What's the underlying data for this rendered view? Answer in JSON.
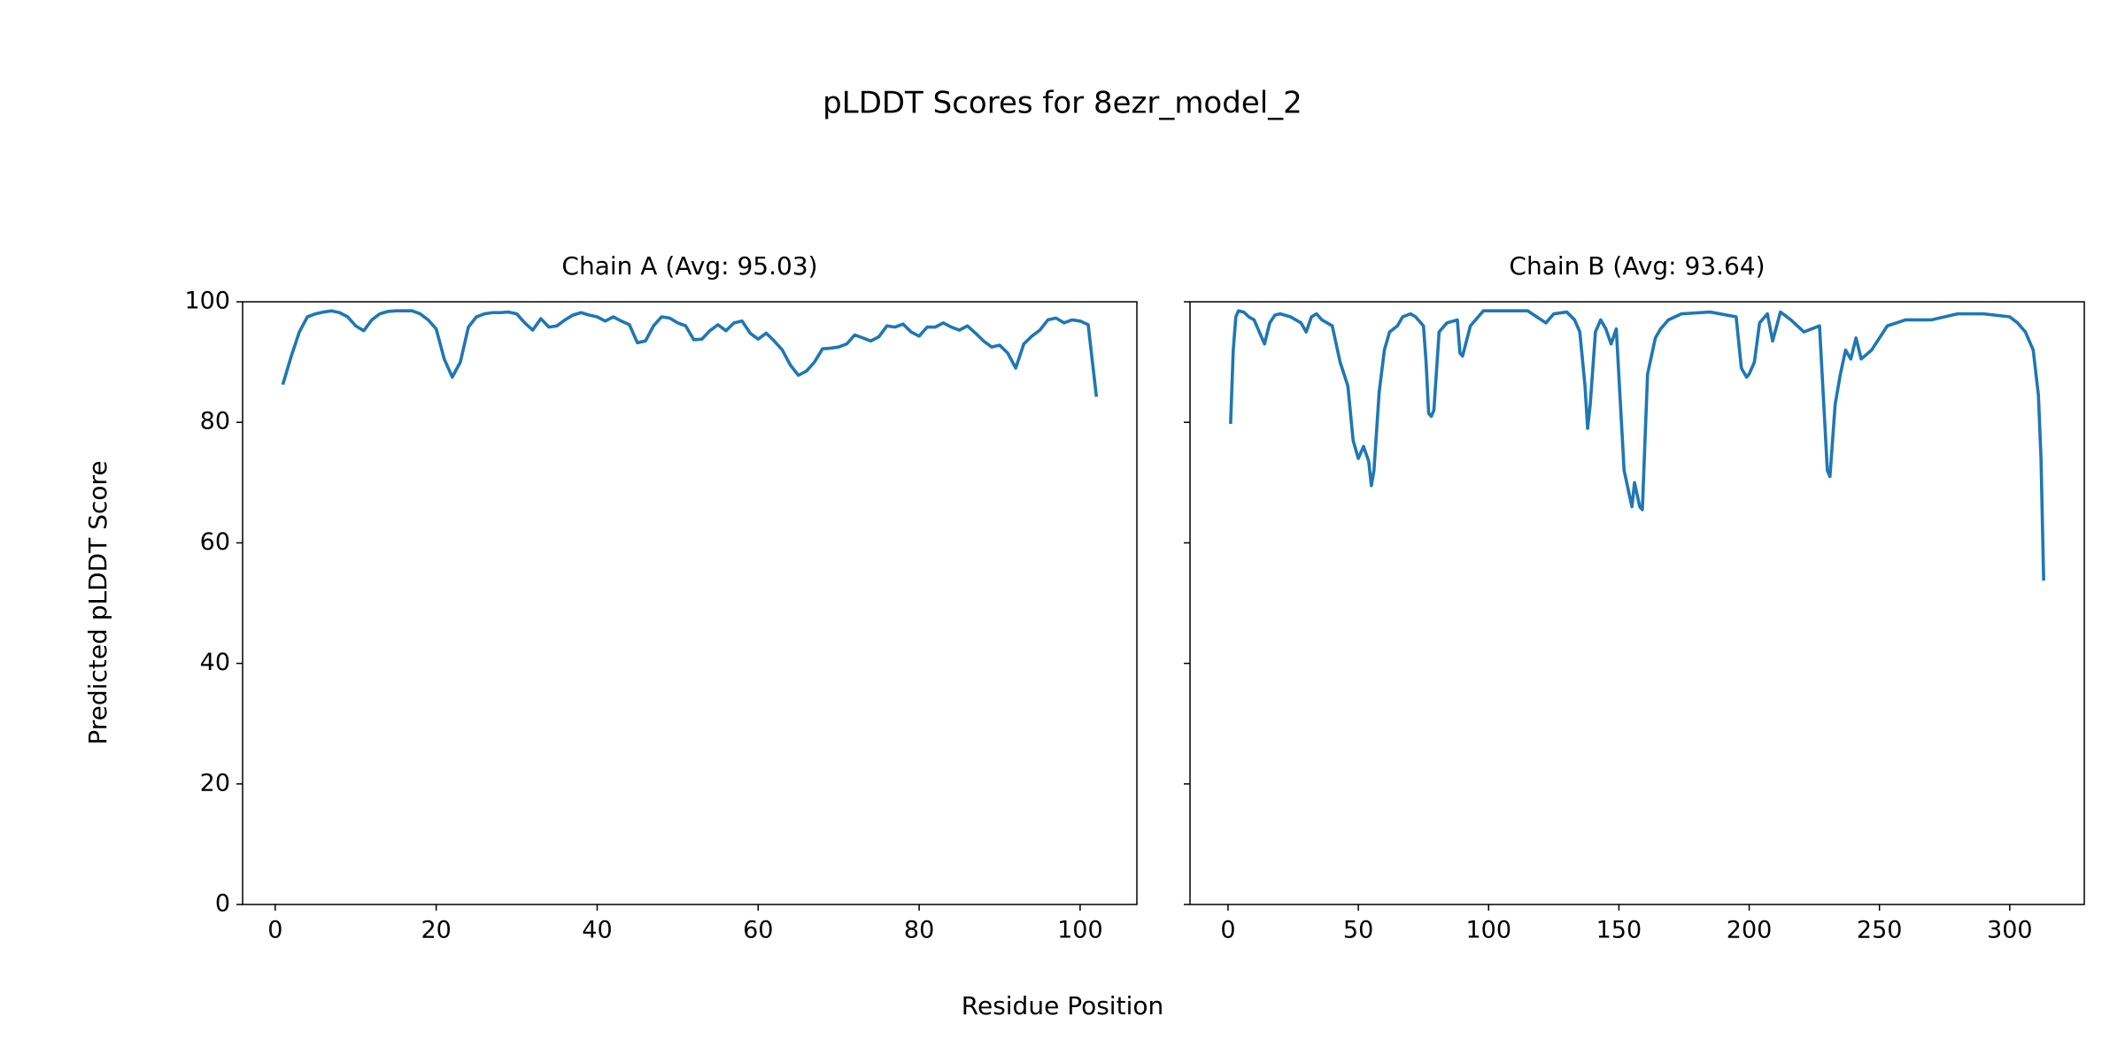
{
  "title": "pLDDT Scores for 8ezr_model_2",
  "xlabel": "Residue Position",
  "ylabel": "Predicted pLDDT Score",
  "chart_data": [
    {
      "type": "line",
      "title": "Chain A (Avg: 95.03)",
      "color": "#1f77b4",
      "x": [
        1,
        2,
        3,
        4,
        5,
        6,
        7,
        8,
        9,
        10,
        11,
        12,
        13,
        14,
        15,
        16,
        17,
        18,
        19,
        20,
        21,
        22,
        23,
        24,
        25,
        26,
        27,
        28,
        29,
        30,
        31,
        32,
        33,
        34,
        35,
        36,
        37,
        38,
        39,
        40,
        41,
        42,
        43,
        44,
        45,
        46,
        47,
        48,
        49,
        50,
        51,
        52,
        53,
        54,
        55,
        56,
        57,
        58,
        59,
        60,
        61,
        62,
        63,
        64,
        65,
        66,
        67,
        68,
        69,
        70,
        71,
        72,
        73,
        74,
        75,
        76,
        77,
        78,
        79,
        80,
        81,
        82,
        83,
        84,
        85,
        86,
        87,
        88,
        89,
        90,
        91,
        92,
        93,
        94,
        95,
        96,
        97,
        98,
        99,
        100,
        101,
        102
      ],
      "values": [
        86.5,
        91,
        95,
        97.5,
        98,
        98.3,
        98.5,
        98.2,
        97.5,
        96,
        95.2,
        97,
        98,
        98.4,
        98.5,
        98.5,
        98.5,
        98,
        97,
        95.5,
        90.5,
        87.5,
        90,
        95.8,
        97.5,
        98,
        98.2,
        98.2,
        98.3,
        98,
        96.5,
        95.3,
        97.2,
        95.8,
        96,
        97,
        97.8,
        98.2,
        97.8,
        97.5,
        96.8,
        97.5,
        96.8,
        96.2,
        93.2,
        93.5,
        96,
        97.5,
        97.3,
        96.5,
        96,
        93.7,
        93.8,
        95.2,
        96.2,
        95.2,
        96.5,
        96.8,
        94.8,
        93.8,
        94.8,
        93.5,
        92,
        89.5,
        87.8,
        88.5,
        90,
        92.2,
        92.3,
        92.5,
        93,
        94.5,
        94,
        93.5,
        94.2,
        96,
        95.8,
        96.3,
        95,
        94.3,
        95.8,
        95.8,
        96.5,
        95.8,
        95.3,
        96,
        94.8,
        93.5,
        92.5,
        92.8,
        91.5,
        89,
        93,
        94.3,
        95.3,
        97,
        97.3,
        96.5,
        97,
        96.8,
        96.2,
        84.5
      ],
      "xlim": [
        -4.05,
        107.05
      ],
      "ylim": [
        0,
        100
      ],
      "xticks": [
        0,
        20,
        40,
        60,
        80,
        100
      ],
      "yticks": [
        0,
        20,
        40,
        60,
        80,
        100
      ],
      "ytick_labels": true
    },
    {
      "type": "line",
      "title": "Chain B (Avg: 93.64)",
      "color": "#1f77b4",
      "x": [
        1,
        2,
        3,
        4,
        6,
        8,
        10,
        12,
        14,
        16,
        18,
        20,
        24,
        28,
        30,
        32,
        34,
        36,
        40,
        43,
        46,
        48,
        50,
        52,
        54,
        55,
        56,
        58,
        60,
        62,
        65,
        67,
        70,
        72,
        75,
        76,
        77,
        78,
        79,
        81,
        84,
        88,
        89,
        90,
        93,
        98,
        105,
        115,
        122,
        125,
        130,
        133,
        135,
        137,
        138,
        139,
        141,
        143,
        145,
        147,
        149,
        152,
        153,
        155,
        156,
        158,
        159,
        161,
        164,
        166,
        169,
        174,
        185,
        195,
        197,
        199,
        200,
        202,
        204,
        207,
        209,
        212,
        216,
        221,
        227,
        229,
        230,
        231,
        233,
        235,
        237,
        239,
        241,
        243,
        247,
        253,
        260,
        270,
        280,
        290,
        300,
        303,
        306,
        309,
        311,
        312,
        313
      ],
      "values": [
        80,
        92,
        97.5,
        98.5,
        98.3,
        97.5,
        97,
        95,
        93,
        96.5,
        97.8,
        98,
        97.5,
        96.5,
        95,
        97.5,
        98,
        97,
        96,
        90,
        86,
        77,
        74,
        76,
        73.5,
        69.5,
        72,
        85,
        92,
        95,
        96,
        97.5,
        98,
        97.5,
        96,
        90,
        81.5,
        81,
        82,
        95,
        96.5,
        97,
        91.5,
        91,
        96,
        98.5,
        98.5,
        98.5,
        96.5,
        98,
        98.3,
        97,
        95,
        86,
        79,
        83,
        95,
        97,
        95.5,
        93,
        95.5,
        72,
        70,
        66,
        70,
        66,
        65.5,
        88,
        94,
        95.5,
        97,
        98,
        98.3,
        97.5,
        89,
        87.5,
        88,
        90,
        96.5,
        98,
        93.5,
        98.3,
        97,
        95,
        96,
        80,
        72,
        71,
        83,
        88,
        92,
        90.5,
        94,
        90.5,
        92,
        96,
        97,
        97,
        98,
        98,
        97.5,
        96.5,
        95,
        92,
        84.5,
        74,
        54
      ],
      "xlim": [
        -14.6,
        328.6
      ],
      "ylim": [
        0,
        100
      ],
      "xticks": [
        0,
        50,
        100,
        150,
        200,
        250,
        300
      ],
      "yticks": [
        0,
        20,
        40,
        60,
        80,
        100
      ],
      "ytick_labels": false
    }
  ]
}
